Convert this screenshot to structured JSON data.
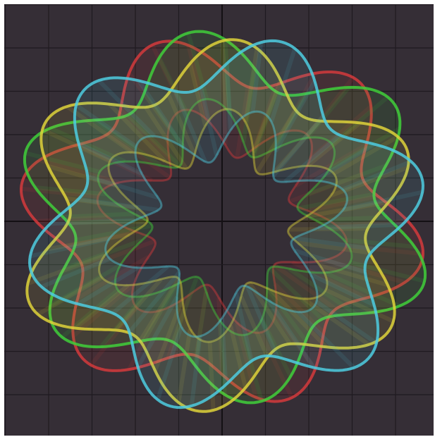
{
  "canvas": {
    "background_color": "#352e36",
    "frame_color": "#ffffff",
    "grid": {
      "shown": true,
      "color": "#1f1a20",
      "axis_color": "#141014"
    }
  },
  "curves": [
    {
      "name": "curve-red",
      "color": "#d43a3c"
    },
    {
      "name": "curve-green",
      "color": "#3fcf3a"
    },
    {
      "name": "curve-yellow",
      "color": "#ded23a"
    },
    {
      "name": "curve-cyan",
      "color": "#4dcde0"
    }
  ]
}
